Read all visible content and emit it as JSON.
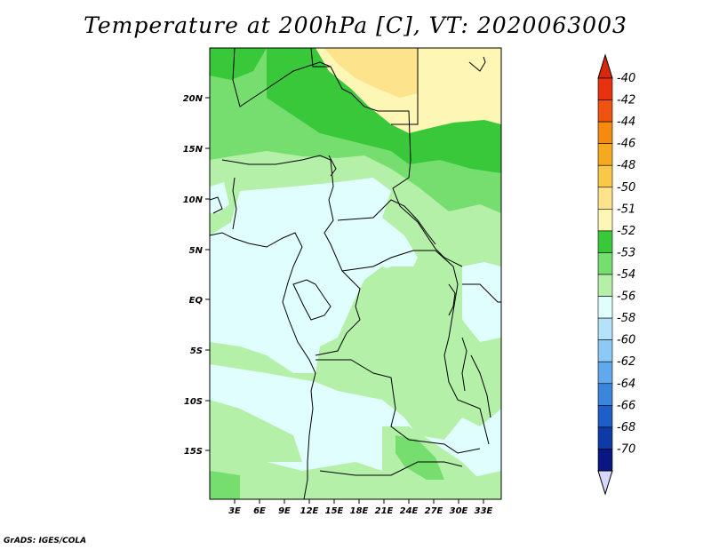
{
  "title": "Temperature at 200hPa [C], VT: 2020063003",
  "footer": "GrADS: IGES/COLA",
  "lat_labels": [
    "20N",
    "15N",
    "10N",
    "5N",
    "EQ",
    "5S",
    "10S",
    "15S"
  ],
  "lon_labels": [
    "3E",
    "6E",
    "9E",
    "12E",
    "15E",
    "18E",
    "21E",
    "24E",
    "27E",
    "30E",
    "33E"
  ],
  "colorbar": {
    "labels": [
      "-40",
      "-42",
      "-44",
      "-46",
      "-48",
      "-50",
      "-51",
      "-52",
      "-53",
      "-54",
      "-56",
      "-58",
      "-60",
      "-62",
      "-64",
      "-66",
      "-68",
      "-70"
    ],
    "colors": [
      "#e8320f",
      "#f0520f",
      "#f58a0f",
      "#f5a91e",
      "#f8c846",
      "#fce38c",
      "#fef6b4",
      "#39c83a",
      "#76de6e",
      "#b5f0a8",
      "#e0fefe",
      "#b5e2fb",
      "#8ccaf5",
      "#5fa9ec",
      "#3a86dd",
      "#1f5dc8",
      "#0e3aa8",
      "#0a1782"
    ],
    "top_arrow_color": "#d8280a",
    "bottom_arrow_color": "#d7d7ff"
  },
  "map_colors": {
    "c51": "#fef6b4",
    "c50": "#fce38c",
    "c52": "#39c83a",
    "c53": "#76de6e",
    "c54": "#b5f0a8",
    "c56": "#e0fefe"
  }
}
